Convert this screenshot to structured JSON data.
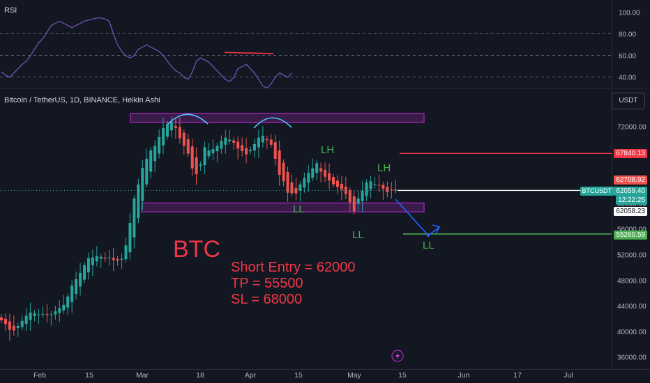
{
  "rsi_pane": {
    "title": "RSI",
    "ticks": [
      "100.00",
      "80.00",
      "60.00",
      "40.00"
    ]
  },
  "main_pane": {
    "title": "Bitcoin / TetherUS, 1D, BINANCE, Heikin Ashi",
    "currency_button": "USDT",
    "price_ticks": [
      "72000.00",
      "68000.00",
      "64000.00",
      "60000.00",
      "56000.00",
      "52000.00",
      "48000.00",
      "44000.00",
      "40000.00",
      "36000.00"
    ],
    "date_ticks": [
      "Feb",
      "15",
      "Mar",
      "18",
      "Apr",
      "15",
      "May",
      "15",
      "Jun",
      "17",
      "Jul"
    ]
  },
  "price_tags": {
    "red_level": "67840.13",
    "high_tag": "62708.92",
    "symbol": "BTCUSDT",
    "last_price": "62059.40",
    "countdown": "12:22:25",
    "crosshair_price": "62058.23",
    "green_level": "55260.59"
  },
  "annotations": {
    "btc": "BTC",
    "entry": "Short Entry = 62000",
    "tp": "TP = 55500",
    "sl": "SL = 68000",
    "lh1": "LH",
    "lh2": "LH",
    "ll1": "LL",
    "ll2": "LL",
    "ll3": "LL"
  },
  "colors": {
    "background": "#131722",
    "bull_candle": "#26a69a",
    "bear_candle": "#ef5350",
    "rsi_line": "#7e57c2",
    "range_box": "#9c27b0",
    "annotation_red": "#f23645",
    "annotation_green": "#4caf50",
    "projection_blue": "#2962ff",
    "arc_cyan": "#4fc3f7"
  },
  "chart_data": [
    {
      "type": "line",
      "title": "RSI",
      "ylim": [
        25,
        100
      ],
      "yticks": [
        100,
        80,
        60,
        40
      ],
      "values": [
        45,
        42,
        40,
        44,
        48,
        52,
        55,
        60,
        66,
        72,
        76,
        82,
        88,
        90,
        92,
        90,
        88,
        86,
        88,
        90,
        92,
        93,
        94,
        95,
        95,
        94,
        92,
        80,
        70,
        64,
        60,
        58,
        60,
        66,
        68,
        70,
        68,
        66,
        64,
        60,
        55,
        50,
        46,
        44,
        40,
        38,
        45,
        55,
        58,
        56,
        54,
        50,
        46,
        42,
        38,
        36,
        40,
        48,
        50,
        52,
        48,
        44,
        38,
        32,
        30,
        34,
        40,
        44,
        42,
        40,
        44
      ],
      "divergence_segment": [
        63,
        62
      ]
    },
    {
      "type": "candlestick",
      "title": "Bitcoin / TetherUS, 1D, BINANCE, Heikin Ashi",
      "ylim": [
        35500,
        77000
      ],
      "yticks": [
        72000,
        68000,
        64000,
        60000,
        56000,
        52000,
        48000,
        44000,
        40000,
        36000
      ],
      "xticks": [
        "Feb",
        "15",
        "Mar",
        "18",
        "Apr",
        "15",
        "May",
        "15",
        "Jun",
        "17",
        "Jul"
      ],
      "closes": [
        41800,
        41200,
        40300,
        40200,
        40900,
        41700,
        42500,
        43000,
        42900,
        42700,
        42800,
        42600,
        42700,
        43200,
        43700,
        44200,
        45500,
        47200,
        48200,
        49200,
        50400,
        51500,
        51600,
        51800,
        51700,
        51400,
        51600,
        51200,
        51100,
        51400,
        53500,
        57000,
        60800,
        63000,
        65600,
        67000,
        68300,
        69000,
        70400,
        71800,
        72400,
        72800,
        71800,
        70200,
        69000,
        67800,
        65500,
        64600,
        66100,
        68800,
        68300,
        68500,
        69000,
        69800,
        70300,
        70000,
        69500,
        68600,
        68200,
        67700,
        68400,
        69300,
        70300,
        70600,
        69900,
        69200,
        67000,
        64500,
        63500,
        61700,
        61600,
        61600,
        63000,
        64000,
        64800,
        65500,
        66300,
        65000,
        64200,
        63600,
        63000,
        62600,
        62200,
        61500,
        60200,
        58800,
        60800,
        62000,
        63300,
        63500,
        63000,
        62900,
        62300,
        61800,
        62200,
        62059
      ],
      "last_price": 62059.4,
      "levels": {
        "red_line": 67840.13,
        "green_line": 55260.59
      },
      "ranges": [
        [
          72700,
          74100
        ],
        [
          58700,
          60100
        ]
      ],
      "labels": [
        "LH",
        "LH",
        "LL",
        "LL",
        "LL"
      ]
    }
  ]
}
